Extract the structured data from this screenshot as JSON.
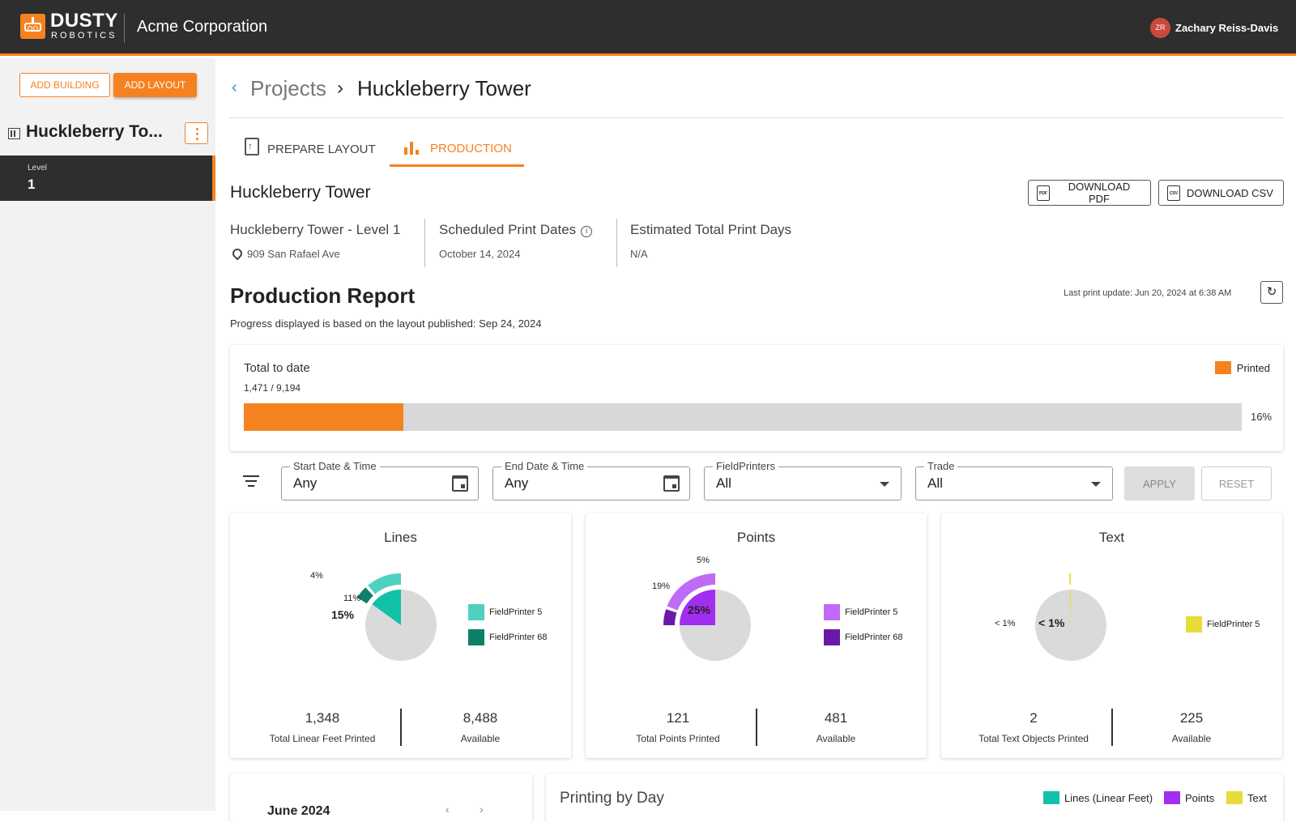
{
  "brand": {
    "name_top": "DUSTY",
    "name_bottom": "ROBOTICS",
    "accent": "#f58220",
    "dark": "#2e2e2e"
  },
  "header": {
    "company": "Acme Corporation",
    "user_initials": "ZR",
    "user_name": "Zachary Reiss-Davis"
  },
  "sidebar": {
    "add_building": "ADD BUILDING",
    "add_layout": "ADD LAYOUT",
    "building_name": "Huckleberry To...",
    "level_label": "Level",
    "level_value": "1"
  },
  "breadcrumb": {
    "back": "‹",
    "projects": "Projects",
    "separator": "›",
    "current": "Huckleberry Tower"
  },
  "tabs": {
    "prepare": "PREPARE LAYOUT",
    "production": "PRODUCTION"
  },
  "section": {
    "title": "Huckleberry Tower",
    "download_pdf": "DOWNLOAD PDF",
    "download_csv": "DOWNLOAD CSV",
    "pdf_tag": "PDF",
    "csv_tag": "CSV"
  },
  "info": {
    "layout_name": "Huckleberry Tower - Level 1",
    "address": "909 San Rafael Ave",
    "schedule_label": "Scheduled Print Dates",
    "schedule_value": "October 14, 2024",
    "est_label": "Estimated Total Print Days",
    "est_value": "N/A"
  },
  "report": {
    "title": "Production Report",
    "note": "Progress displayed is based on the layout published: Sep 24, 2024",
    "last_update": "Last print update: Jun 20, 2024 at 6:38 AM"
  },
  "total": {
    "title": "Total to date",
    "count": "1,471 / 9,194",
    "legend": "Printed",
    "percent_label": "16%",
    "fraction": 0.16
  },
  "filters": {
    "start_label": "Start Date & Time",
    "start_value": "Any",
    "end_label": "End Date & Time",
    "end_value": "Any",
    "printers_label": "FieldPrinters",
    "printers_value": "All",
    "trade_label": "Trade",
    "trade_value": "All",
    "apply": "APPLY",
    "reset": "RESET"
  },
  "colors": {
    "lines_fp5": "#4fd1c0",
    "lines_fp68": "#0e7f6b",
    "lines_total": "#12c2a8",
    "points_fp5": "#bf6bf5",
    "points_fp68": "#6a1aa8",
    "points_total": "#a12ef0",
    "text_fp5": "#e8dc3a",
    "pie_bg": "#dadada"
  },
  "metrics": {
    "lines": {
      "title": "Lines",
      "total_label": "15%",
      "fp5_label": "11%",
      "fp68_label": "4%",
      "total_frac": 0.15,
      "fp5_frac": 0.11,
      "fp68_frac": 0.04,
      "legend": [
        "FieldPrinter 5",
        "FieldPrinter 68"
      ],
      "printed_value": "1,348",
      "printed_label": "Total Linear Feet Printed",
      "available_value": "8,488",
      "available_label": "Available"
    },
    "points": {
      "title": "Points",
      "total_label": "25%",
      "fp5_label": "19%",
      "fp68_label": "5%",
      "total_frac": 0.25,
      "fp5_frac": 0.19,
      "fp68_frac": 0.05,
      "legend": [
        "FieldPrinter 5",
        "FieldPrinter 68"
      ],
      "printed_value": "121",
      "printed_label": "Total Points Printed",
      "available_value": "481",
      "available_label": "Available"
    },
    "text": {
      "title": "Text",
      "total_label": "< 1%",
      "fp5_label": "< 1%",
      "total_frac": 0.005,
      "fp5_frac": 0.005,
      "legend": [
        "FieldPrinter 5"
      ],
      "printed_value": "2",
      "printed_label": "Total Text Objects Printed",
      "available_value": "225",
      "available_label": "Available"
    }
  },
  "bottom": {
    "month": "June 2024",
    "prev": "‹",
    "next": "›",
    "printing_title": "Printing by Day",
    "legend": [
      "Lines (Linear Feet)",
      "Points",
      "Text"
    ]
  }
}
